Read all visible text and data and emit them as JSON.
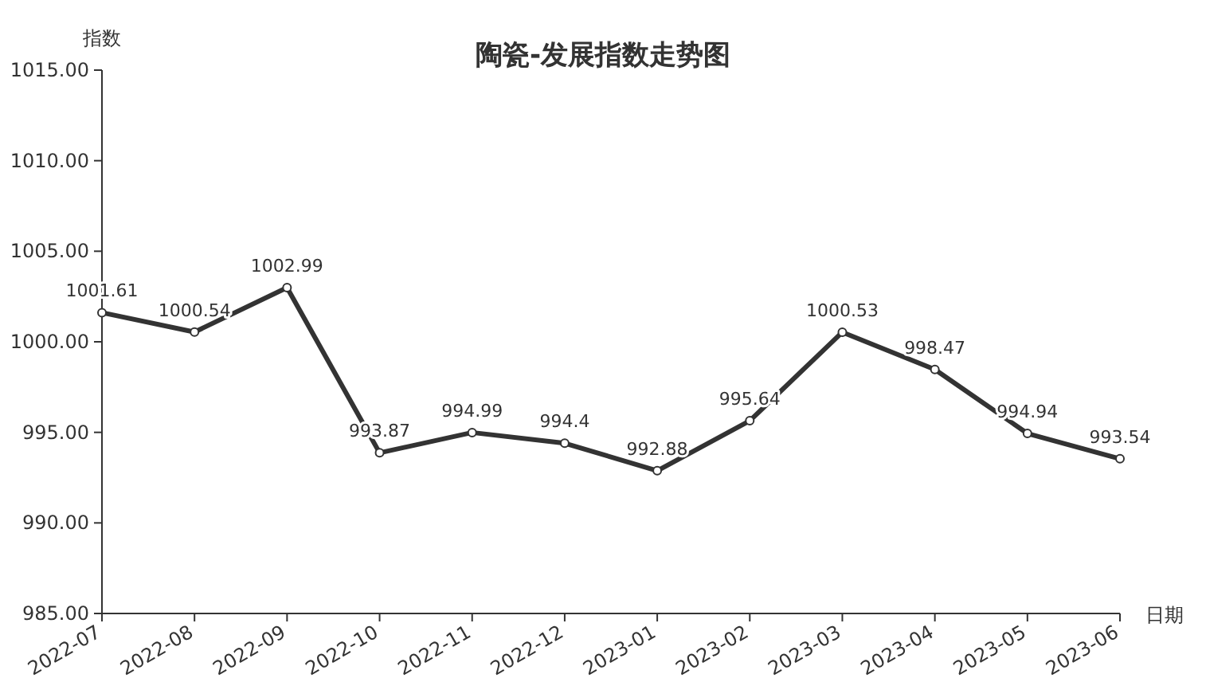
{
  "chart_data": {
    "type": "line",
    "title": "陶瓷-发展指数走势图",
    "xlabel": "日期",
    "ylabel": "指数",
    "categories": [
      "2022-07",
      "2022-08",
      "2022-09",
      "2022-10",
      "2022-11",
      "2022-12",
      "2023-01",
      "2023-02",
      "2023-03",
      "2023-04",
      "2023-05",
      "2023-06"
    ],
    "values": [
      1001.61,
      1000.54,
      1002.99,
      993.87,
      994.99,
      994.4,
      992.88,
      995.64,
      1000.53,
      998.47,
      994.94,
      993.54
    ],
    "color": "#333333",
    "marker": "circle",
    "data_labels": true,
    "ylim": [
      985,
      1015
    ],
    "yticks": [
      {
        "value": 985,
        "label": "985.00"
      },
      {
        "value": 990,
        "label": "990.00"
      },
      {
        "value": 995,
        "label": "995.00"
      },
      {
        "value": 1000,
        "label": "1000.00"
      },
      {
        "value": 1005,
        "label": "1005.00"
      },
      {
        "value": 1010,
        "label": "1010.00"
      },
      {
        "value": 1015,
        "label": "1015.00"
      }
    ]
  }
}
